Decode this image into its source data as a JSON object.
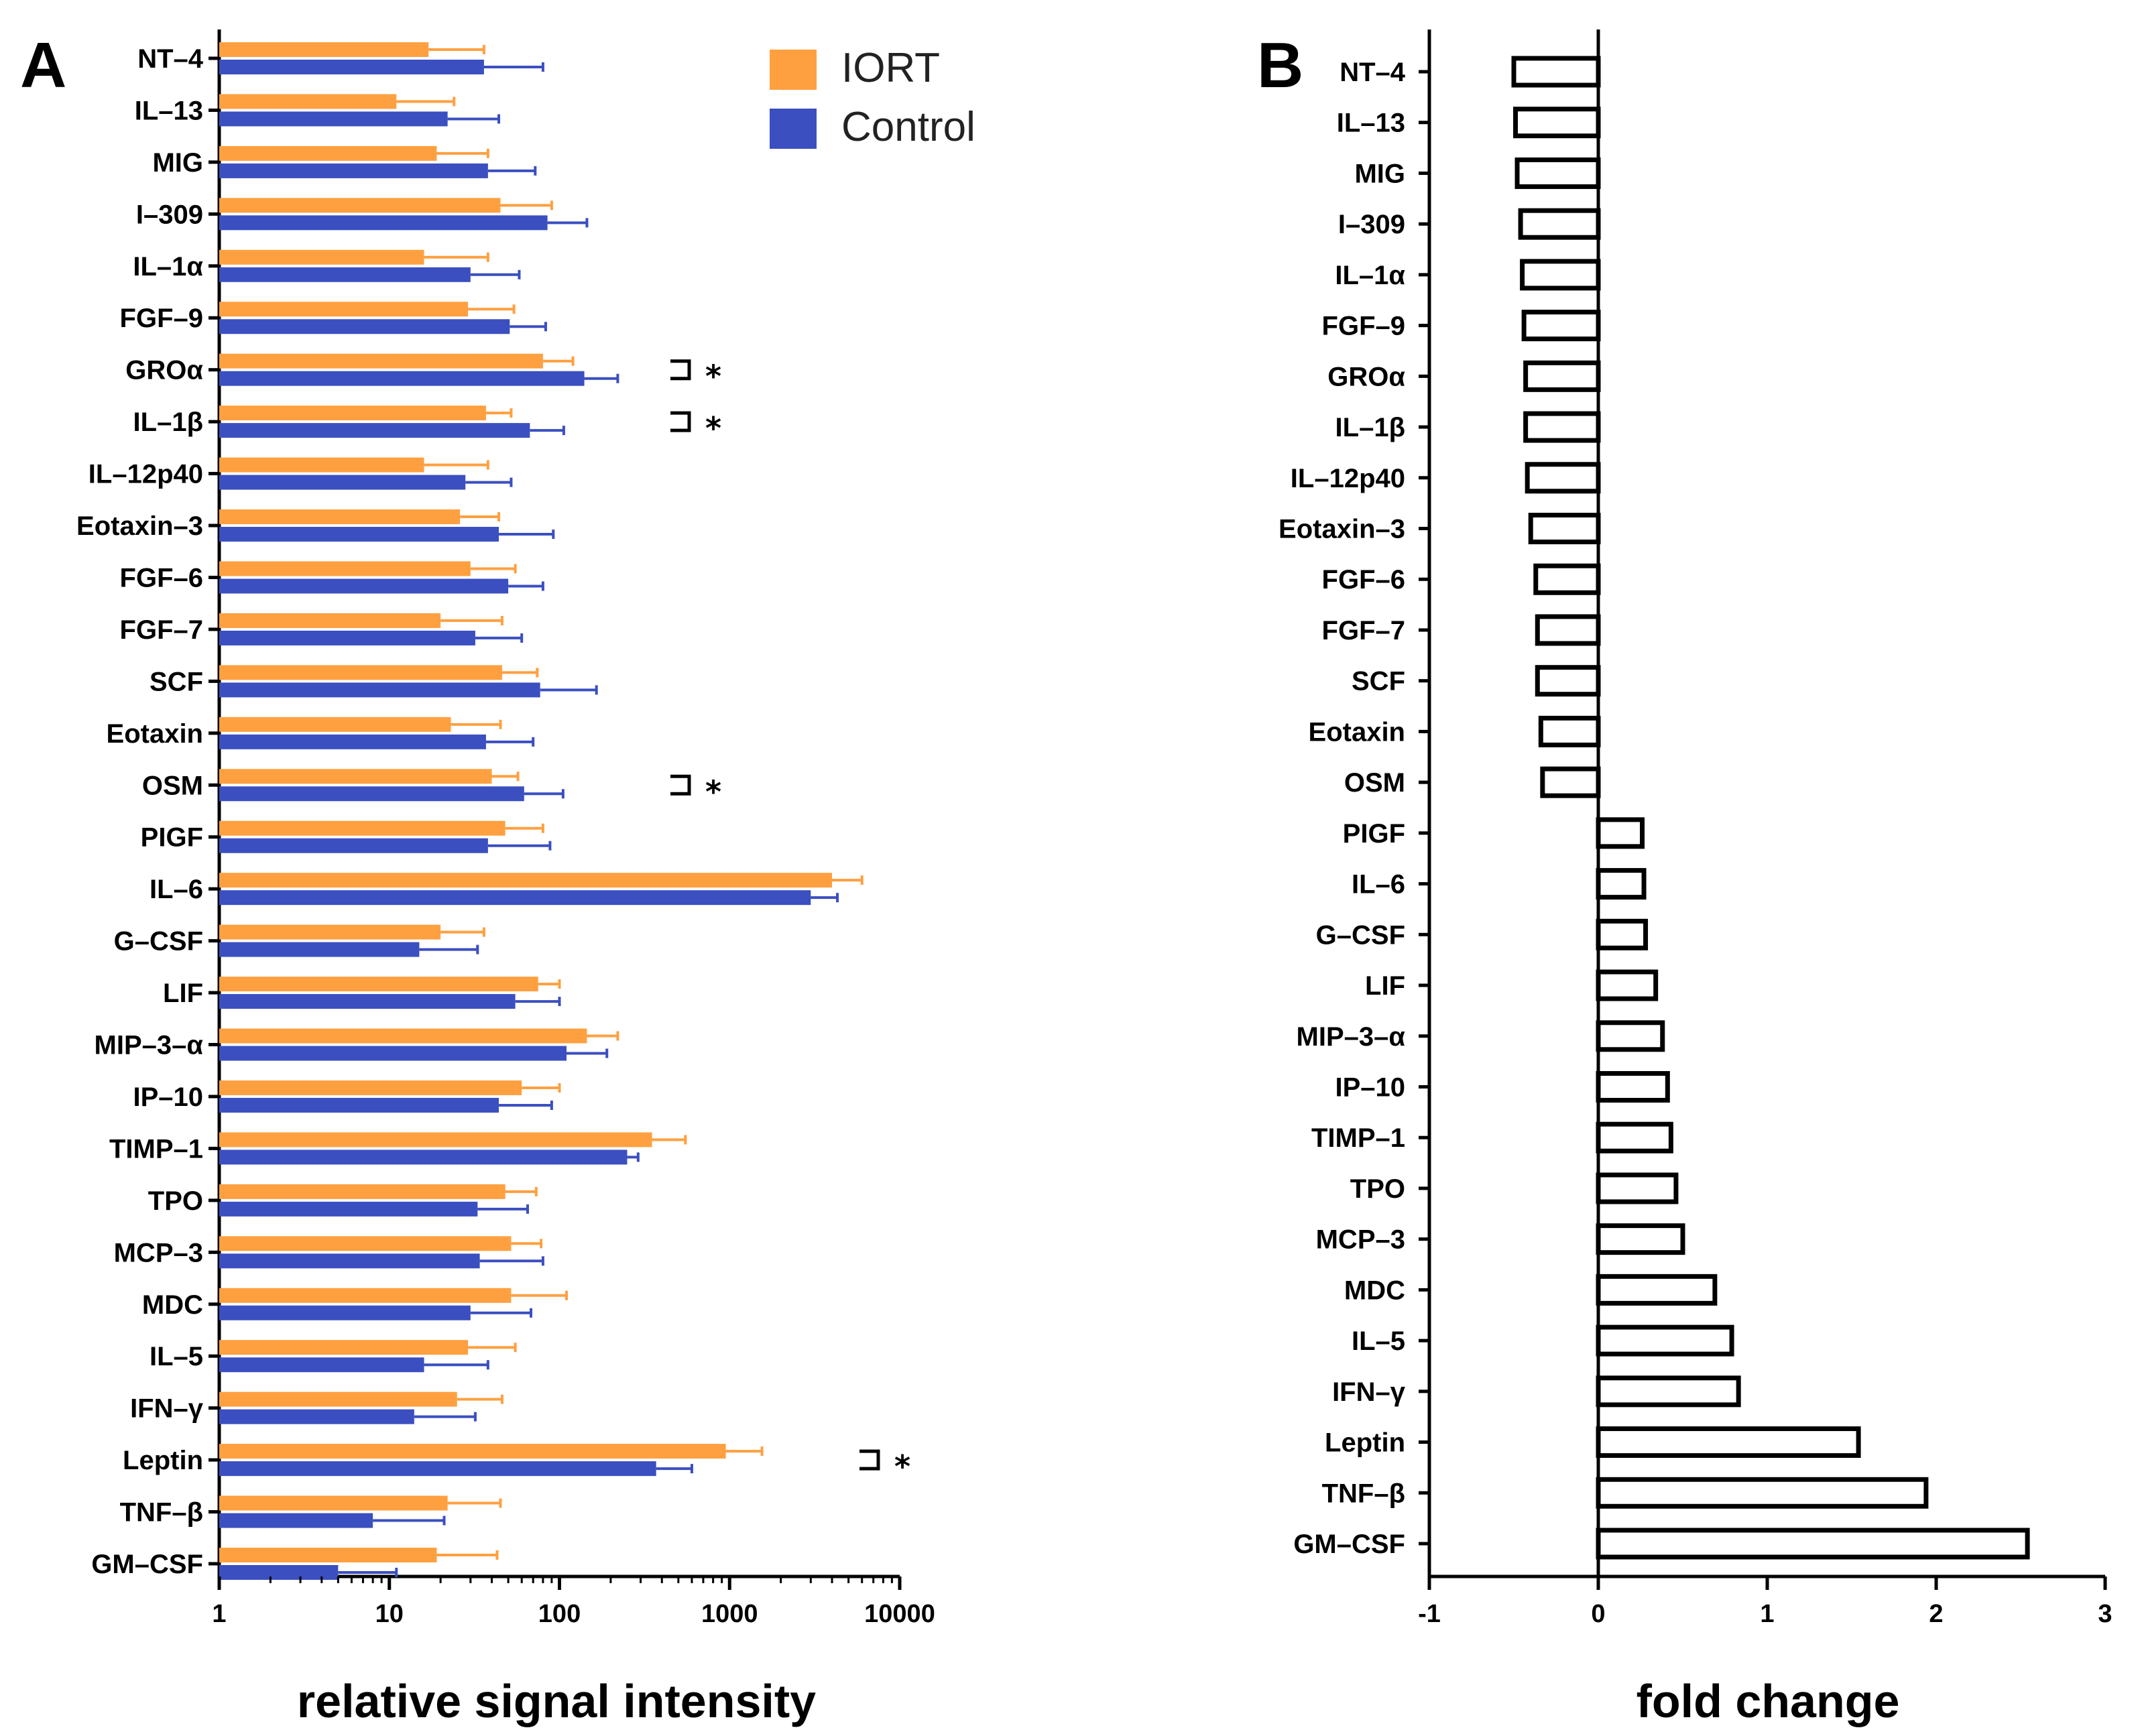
{
  "colors": {
    "iort": "#FFA040",
    "control": "#3B4FC0",
    "axis": "#000000",
    "fold_bar_fill": "#FFFFFF",
    "fold_bar_stroke": "#000000"
  },
  "panels": {
    "a_letter": "A",
    "b_letter": "B"
  },
  "chart_data": [
    {
      "id": "A",
      "type": "bar",
      "orientation": "horizontal",
      "x_scale": "log",
      "xlim": [
        1,
        10000
      ],
      "xticks": [
        "1",
        "10",
        "100",
        "1000",
        "10000"
      ],
      "xlabel": "relative signal intensity",
      "legend": {
        "position": "top-right",
        "entries": [
          "IORT",
          "Control"
        ]
      },
      "categories": [
        "NT–4",
        "IL–13",
        "MIG",
        "I–309",
        "IL–1α",
        "FGF–9",
        "GROα",
        "IL–1β",
        "IL–12p40",
        "Eotaxin–3",
        "FGF–6",
        "FGF–7",
        "SCF",
        "Eotaxin",
        "OSM",
        "PIGF",
        "IL–6",
        "G–CSF",
        "LIF",
        "MIP–3–α",
        "IP–10",
        "TIMP–1",
        "TPO",
        "MCP–3",
        "MDC",
        "IL–5",
        "IFN–γ",
        "Leptin",
        "TNF–β",
        "GM–CSF"
      ],
      "series": [
        {
          "name": "IORT",
          "values": [
            17,
            11,
            19,
            45,
            16,
            29,
            80,
            37,
            16,
            26,
            30,
            20,
            46,
            23,
            40,
            48,
            4000,
            20,
            75,
            145,
            60,
            350,
            48,
            52,
            52,
            29,
            25,
            950,
            22,
            19
          ],
          "error_upper": [
            36,
            24,
            38,
            90,
            38,
            54,
            120,
            52,
            38,
            44,
            55,
            46,
            74,
            45,
            57,
            80,
            6000,
            36,
            100,
            220,
            100,
            550,
            73,
            78,
            110,
            55,
            46,
            1550,
            45,
            43
          ]
        },
        {
          "name": "Control",
          "values": [
            36,
            22,
            38,
            85,
            30,
            51,
            140,
            67,
            28,
            44,
            50,
            32,
            77,
            37,
            62,
            38,
            3000,
            15,
            55,
            110,
            44,
            250,
            33,
            34,
            30,
            16,
            14,
            370,
            8,
            5
          ],
          "error_upper": [
            80,
            44,
            72,
            145,
            58,
            83,
            220,
            106,
            52,
            92,
            80,
            60,
            165,
            70,
            105,
            88,
            4300,
            33,
            100,
            190,
            90,
            290,
            65,
            80,
            68,
            38,
            32,
            600,
            21,
            11
          ]
        }
      ],
      "significance": [
        {
          "category": "GROα",
          "label": "*"
        },
        {
          "category": "IL–1β",
          "label": "*"
        },
        {
          "category": "OSM",
          "label": "*"
        },
        {
          "category": "Leptin",
          "label": "*"
        }
      ]
    },
    {
      "id": "B",
      "type": "bar",
      "orientation": "horizontal",
      "xlim": [
        -1,
        3
      ],
      "xticks": [
        "-1",
        "0",
        "1",
        "2",
        "3"
      ],
      "xlabel": "fold change",
      "categories": [
        "NT–4",
        "IL–13",
        "MIG",
        "I–309",
        "IL–1α",
        "FGF–9",
        "GROα",
        "IL–1β",
        "IL–12p40",
        "Eotaxin–3",
        "FGF–6",
        "FGF–7",
        "SCF",
        "Eotaxin",
        "OSM",
        "PIGF",
        "IL–6",
        "G–CSF",
        "LIF",
        "MIP–3–α",
        "IP–10",
        "TIMP–1",
        "TPO",
        "MCP–3",
        "MDC",
        "IL–5",
        "IFN–γ",
        "Leptin",
        "TNF–β",
        "GM–CSF"
      ],
      "values": [
        -0.5,
        -0.49,
        -0.48,
        -0.46,
        -0.45,
        -0.44,
        -0.43,
        -0.43,
        -0.42,
        -0.4,
        -0.37,
        -0.36,
        -0.36,
        -0.34,
        -0.33,
        0.26,
        0.27,
        0.28,
        0.34,
        0.38,
        0.41,
        0.43,
        0.46,
        0.5,
        0.69,
        0.79,
        0.83,
        1.54,
        1.94,
        2.54
      ]
    }
  ]
}
